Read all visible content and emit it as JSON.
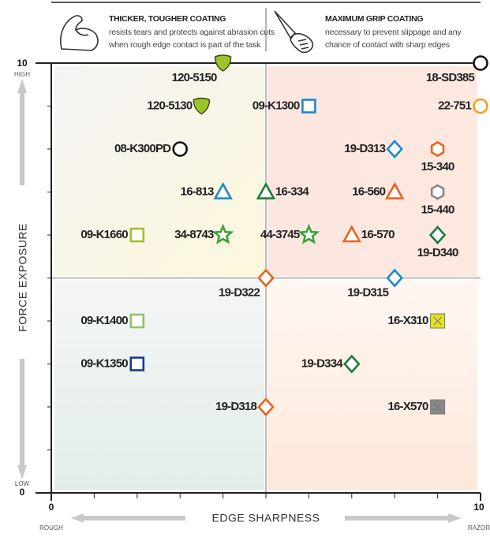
{
  "chart_data": {
    "type": "scatter",
    "header": [
      {
        "title": "THICKER, TOUGHER COATING",
        "lines": [
          "resists tears and protects against abrasion cuts",
          "when rough edge contact is part of the task"
        ]
      },
      {
        "title": "MAXIMUM GRIP COATING",
        "lines": [
          "necessary to prevent slippage and any",
          "chance of contact with sharp edges"
        ]
      }
    ],
    "x_label": "EDGE SHARPNESS",
    "y_label": "FORCE EXPOSURE",
    "x_end_labels": [
      "ROUGH",
      "RAZOR"
    ],
    "y_end_labels": [
      "LOW",
      "HIGH"
    ],
    "xlim": [
      0,
      10
    ],
    "ylim": [
      0,
      10
    ],
    "xticks": [
      0,
      10
    ],
    "yticks": [
      0,
      10
    ],
    "quadrant_divider": {
      "x": 5,
      "y": 5
    },
    "points": [
      {
        "name": "120-5150",
        "x": 4,
        "y": 10,
        "marker": "shield",
        "color": "#9dc32a"
      },
      {
        "name": "18-SD385",
        "x": 10,
        "y": 10,
        "marker": "circle",
        "color": "#111111"
      },
      {
        "name": "120-5130",
        "x": 3.5,
        "y": 9,
        "marker": "shield",
        "color": "#9dc32a"
      },
      {
        "name": "09-K1300",
        "x": 6,
        "y": 9,
        "marker": "square",
        "color": "#1c8ac8"
      },
      {
        "name": "22-751",
        "x": 10,
        "y": 9,
        "marker": "circle",
        "color": "#f0a020"
      },
      {
        "name": "08-K300PD",
        "x": 3,
        "y": 8,
        "marker": "circle",
        "color": "#111111"
      },
      {
        "name": "19-D313",
        "x": 8,
        "y": 8,
        "marker": "diamond",
        "color": "#1c8ac8"
      },
      {
        "name": "15-340",
        "x": 9,
        "y": 8,
        "marker": "hexagon",
        "color": "#e8621e"
      },
      {
        "name": "16-813",
        "x": 4,
        "y": 7,
        "marker": "triangle",
        "color": "#1c8ac8"
      },
      {
        "name": "16-334",
        "x": 5,
        "y": 7,
        "marker": "triangle",
        "color": "#1e7a3e"
      },
      {
        "name": "16-560",
        "x": 8,
        "y": 7,
        "marker": "triangle",
        "color": "#e8621e"
      },
      {
        "name": "15-440",
        "x": 9,
        "y": 7,
        "marker": "hexagon",
        "color": "#888888"
      },
      {
        "name": "09-K1660",
        "x": 2,
        "y": 6,
        "marker": "square",
        "color": "#9dc32a"
      },
      {
        "name": "34-8743",
        "x": 4,
        "y": 6,
        "marker": "star",
        "color": "#3aa33a"
      },
      {
        "name": "44-3745",
        "x": 6,
        "y": 6,
        "marker": "star",
        "color": "#3aa33a"
      },
      {
        "name": "16-570",
        "x": 7,
        "y": 6,
        "marker": "triangle",
        "color": "#e8621e"
      },
      {
        "name": "19-D340",
        "x": 9,
        "y": 6,
        "marker": "diamond",
        "color": "#1e7a3e"
      },
      {
        "name": "19-D322",
        "x": 5,
        "y": 5,
        "marker": "diamond",
        "color": "#e8621e"
      },
      {
        "name": "19-D315",
        "x": 8,
        "y": 5,
        "marker": "diamond",
        "color": "#1c8ac8"
      },
      {
        "name": "09-K1400",
        "x": 2,
        "y": 4,
        "marker": "square",
        "color": "#8fc46a"
      },
      {
        "name": "16-X310",
        "x": 9,
        "y": 4,
        "marker": "xsquare",
        "color": "#e5e020"
      },
      {
        "name": "09-K1350",
        "x": 2,
        "y": 3,
        "marker": "square",
        "color": "#1b3a8c"
      },
      {
        "name": "19-D334",
        "x": 7,
        "y": 3,
        "marker": "diamond",
        "color": "#1e7a3e"
      },
      {
        "name": "19-D318",
        "x": 5,
        "y": 2,
        "marker": "diamond",
        "color": "#e8621e"
      },
      {
        "name": "16-X570",
        "x": 9,
        "y": 2,
        "marker": "xsquare",
        "color": "#888888"
      }
    ]
  }
}
